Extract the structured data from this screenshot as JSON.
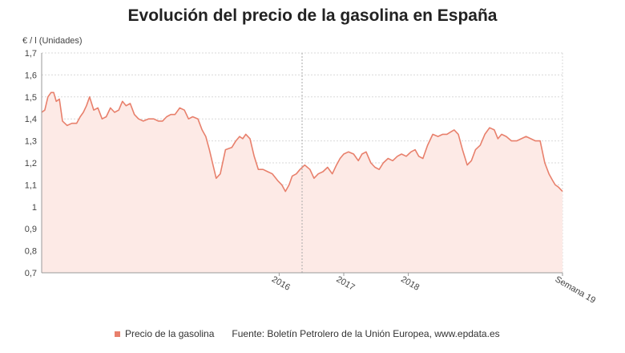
{
  "title": "Evolución del precio de la gasolina en España",
  "source": "Fuente: Boletín Petrolero de la Unión Europea, www.epdata.es",
  "colors": {
    "line": "#e8806c",
    "fill": "#fdeae6",
    "grid": "#d9d9d9",
    "axis": "#999999"
  },
  "chart_data": {
    "type": "area",
    "title": "Evolución del precio de la gasolina en España",
    "ylabel": "€ / l (Unidades)",
    "xlabel": "",
    "ylim": [
      0.7,
      1.7
    ],
    "yticks": [
      "0,7",
      "0,8",
      "0,9",
      "1",
      "1,1",
      "1,2",
      "1,3",
      "1,4",
      "1,5",
      "1,6",
      "1,7"
    ],
    "yticks_values": [
      0.7,
      0.8,
      0.9,
      1.0,
      1.1,
      1.2,
      1.3,
      1.4,
      1.5,
      1.6,
      1.7
    ],
    "xlim": [
      0,
      100
    ],
    "xticks": [
      {
        "label": "2016",
        "x": 45.6
      },
      {
        "label": "2017",
        "x": 58.0
      },
      {
        "label": "2018",
        "x": 70.4
      },
      {
        "label": "Semana 19",
        "x": 100
      }
    ],
    "vertical_marker_x": 50.0,
    "grid": true,
    "legend_position": "bottom",
    "series": [
      {
        "name": "Precio de la gasolina",
        "x": [
          0,
          0.6,
          1.2,
          1.8,
          2.3,
          2.8,
          3.4,
          4.0,
          4.9,
          5.8,
          6.7,
          7.4,
          8.0,
          8.6,
          9.2,
          10.0,
          10.8,
          11.6,
          12.4,
          13.2,
          14.0,
          14.8,
          15.5,
          16.2,
          17.0,
          17.8,
          18.6,
          19.5,
          20.5,
          21.5,
          22.4,
          23.2,
          24.0,
          24.8,
          25.6,
          26.5,
          27.4,
          28.2,
          29.0,
          30.0,
          30.8,
          31.5,
          32.2,
          32.8,
          33.5,
          34.3,
          35.3,
          36.5,
          37.3,
          38.0,
          38.6,
          39.2,
          40.0,
          40.8,
          41.6,
          42.5,
          43.4,
          44.3,
          45.3,
          46.1,
          46.8,
          47.5,
          48.1,
          48.9,
          49.6,
          50.5,
          51.5,
          52.3,
          53.1,
          54.0,
          54.9,
          55.8,
          56.6,
          57.3,
          58.0,
          58.9,
          59.9,
          60.8,
          61.5,
          62.3,
          63.2,
          64.0,
          64.8,
          65.6,
          66.5,
          67.4,
          68.3,
          69.1,
          70.0,
          70.9,
          71.7,
          72.4,
          73.2,
          74.1,
          75.1,
          76.1,
          77.0,
          77.8,
          78.5,
          79.2,
          80.0,
          80.8,
          81.7,
          82.5,
          83.3,
          84.2,
          85.1,
          86.0,
          86.9,
          87.6,
          88.3,
          89.2,
          90.2,
          91.2,
          92.1,
          93.0,
          93.9,
          94.8,
          95.7,
          96.6,
          97.4,
          98.1,
          98.6,
          99.2,
          100
        ],
        "values": [
          1.43,
          1.44,
          1.5,
          1.52,
          1.52,
          1.48,
          1.49,
          1.39,
          1.37,
          1.38,
          1.38,
          1.41,
          1.43,
          1.46,
          1.5,
          1.44,
          1.45,
          1.4,
          1.41,
          1.45,
          1.43,
          1.44,
          1.48,
          1.46,
          1.47,
          1.42,
          1.4,
          1.39,
          1.4,
          1.4,
          1.39,
          1.39,
          1.41,
          1.42,
          1.42,
          1.45,
          1.44,
          1.4,
          1.41,
          1.4,
          1.35,
          1.32,
          1.26,
          1.2,
          1.13,
          1.15,
          1.26,
          1.27,
          1.3,
          1.32,
          1.31,
          1.33,
          1.31,
          1.23,
          1.17,
          1.17,
          1.16,
          1.15,
          1.12,
          1.1,
          1.07,
          1.1,
          1.14,
          1.15,
          1.17,
          1.19,
          1.17,
          1.13,
          1.15,
          1.16,
          1.18,
          1.15,
          1.19,
          1.22,
          1.24,
          1.25,
          1.24,
          1.21,
          1.24,
          1.25,
          1.2,
          1.18,
          1.17,
          1.2,
          1.22,
          1.21,
          1.23,
          1.24,
          1.23,
          1.25,
          1.26,
          1.23,
          1.22,
          1.28,
          1.33,
          1.32,
          1.33,
          1.33,
          1.34,
          1.35,
          1.33,
          1.26,
          1.19,
          1.21,
          1.26,
          1.28,
          1.33,
          1.36,
          1.35,
          1.31,
          1.33,
          1.32,
          1.3,
          1.3,
          1.31,
          1.32,
          1.31,
          1.3,
          1.3,
          1.2,
          1.15,
          1.12,
          1.1,
          1.09,
          1.07
        ]
      }
    ]
  }
}
